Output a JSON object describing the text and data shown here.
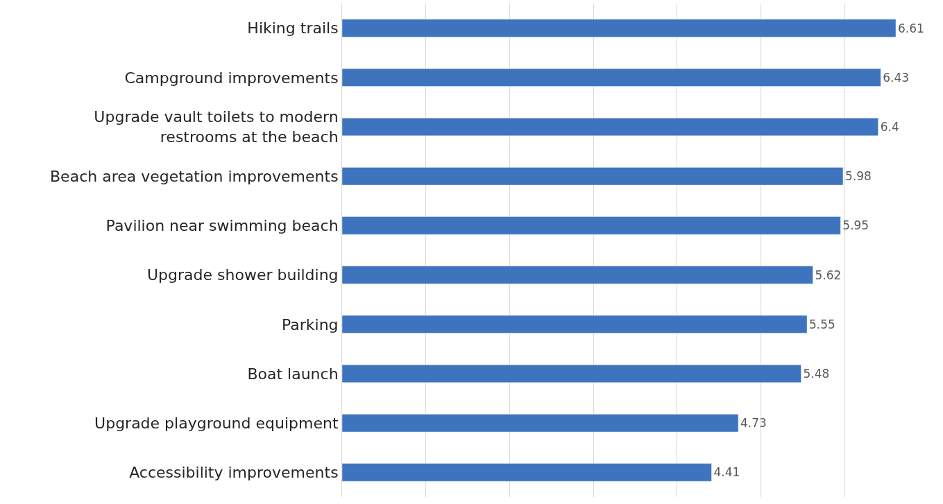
{
  "chart_data": {
    "type": "bar",
    "orientation": "horizontal",
    "data_labels": true,
    "grid": "x",
    "tick_labels": "y",
    "categories": [
      "Hiking trails",
      "Campground improvements",
      "Upgrade vault toilets to modern restrooms at the beach",
      "Beach area vegetation improvements",
      "Pavilion near swimming beach",
      "Upgrade shower building",
      "Parking",
      "Boat launch",
      "Upgrade playground equipment",
      "Accessibility improvements"
    ],
    "values": [
      6.61,
      6.43,
      6.4,
      5.98,
      5.95,
      5.62,
      5.55,
      5.48,
      4.73,
      4.41
    ],
    "color": "#3e74be"
  }
}
